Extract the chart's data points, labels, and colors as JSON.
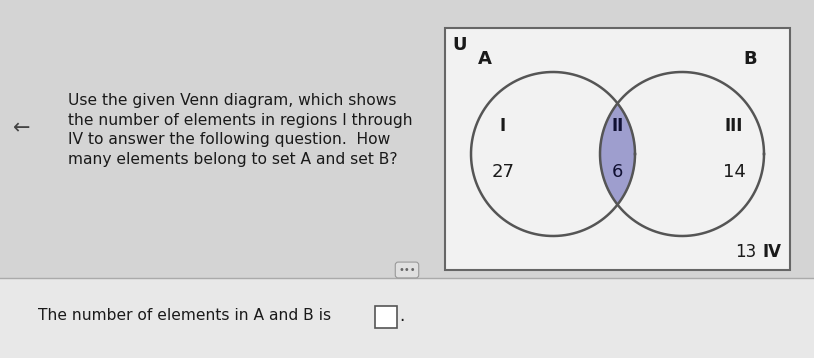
{
  "bg_color": "#d8d8d8",
  "top_bg": "#d8d8d8",
  "bot_bg": "#e8e8e8",
  "venn_rect_bg": "#f2f2f2",
  "venn_rect_edge": "#666666",
  "circle_edge_color": "#555555",
  "intersection_fill": "#9090c8",
  "intersection_alpha": 0.85,
  "label_A": "A",
  "label_B": "B",
  "label_U": "U",
  "region_I_label": "I",
  "region_II_label": "II",
  "region_III_label": "III",
  "region_IV_label": "IV",
  "value_I": "27",
  "value_II": "6",
  "value_III": "14",
  "value_IV": "13",
  "question_text": "Use the given Venn diagram, which shows\nthe number of elements in regions I through\nIV to answer the following question.  How\nmany elements belong to set A and set B?",
  "answer_text": "The number of elements in A and B is",
  "text_color": "#1a1a1a",
  "dark_text": "#111133",
  "arrow_text": "←",
  "dots_text": "•••"
}
